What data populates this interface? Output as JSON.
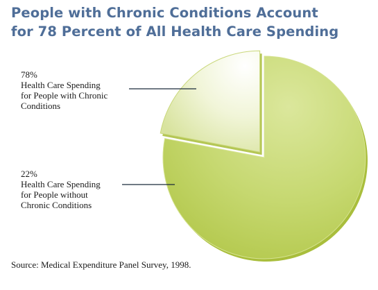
{
  "chart_data": {
    "type": "pie",
    "title": "People with Chronic Conditions Account for 78 Percent of All Health Care Spending",
    "title_lines": [
      "People with Chronic Conditions Account",
      "for 78 Percent of All Health Care Spending"
    ],
    "slices": [
      {
        "label_lines": [
          "Health Care Spending",
          "for People with Chronic",
          "Conditions"
        ],
        "value": 78,
        "value_label": "78%",
        "color": "#c6d870",
        "exploded": false
      },
      {
        "label_lines": [
          "Health Care Spending",
          "for People without",
          "Chronic Conditions"
        ],
        "value": 22,
        "value_label": "22%",
        "color": "#eef3cf",
        "exploded": true
      }
    ],
    "source": "Source: Medical Expenditure Panel Survey, 1998."
  },
  "colors": {
    "title": "#4f6e98",
    "main_slice": "#c6d870",
    "main_slice_edge": "#a9be3c",
    "small_slice": "#eef3cf",
    "small_slice_edge": "#b4c654",
    "leader_line": "#1a2a3a"
  }
}
